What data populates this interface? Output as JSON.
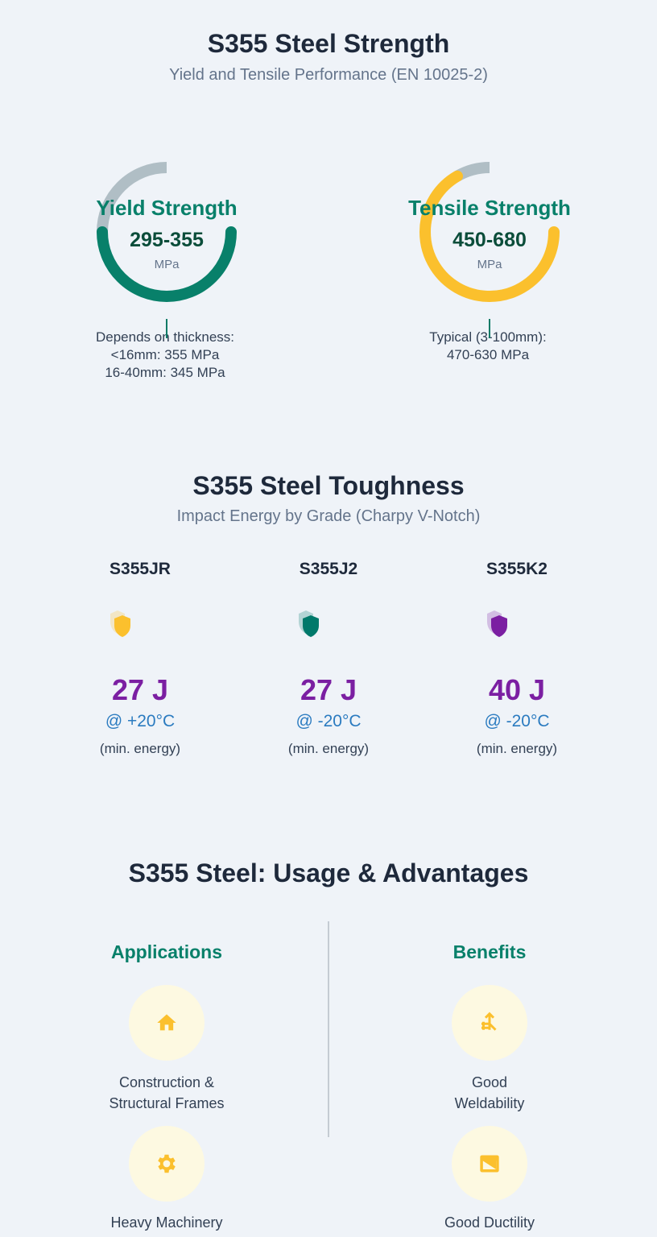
{
  "strength": {
    "title": "S355 Steel Strength",
    "subtitle": "Yield and Tensile Performance (EN 10025-2)",
    "gauges": [
      {
        "label": "Yield Strength",
        "value": "295-355",
        "unit": "MPa",
        "fill_fraction": 0.75,
        "color": "#08806a",
        "track_color": "#b0bec5",
        "notes": [
          "Depends on thickness:",
          "<16mm: 355 MPa",
          "16-40mm: 345 MPa"
        ]
      },
      {
        "label": "Tensile Strength",
        "value": "450-680",
        "unit": "MPa",
        "fill_fraction": 0.92,
        "color": "#fbc02d",
        "track_color": "#b0bec5",
        "notes": [
          "Typical (3-100mm):",
          "470-630 MPa"
        ]
      }
    ]
  },
  "toughness": {
    "title": "S355 Steel Toughness",
    "subtitle": "Impact Energy by Grade (Charpy V-Notch)",
    "grades": [
      {
        "name": "S355JR",
        "icon": "shield-icon",
        "color": "#fbc02d",
        "energy": "27 J",
        "temp": "@ +20°C",
        "note": "(min. energy)"
      },
      {
        "name": "S355J2",
        "icon": "shield-icon",
        "color": "#00796b",
        "energy": "27 J",
        "temp": "@ -20°C",
        "note": "(min. energy)"
      },
      {
        "name": "S355K2",
        "icon": "shield-icon",
        "color": "#7b1fa2",
        "energy": "40 J",
        "temp": "@ -20°C",
        "note": "(min. energy)"
      }
    ]
  },
  "usage": {
    "title": "S355 Steel: Usage & Advantages",
    "applications": {
      "heading": "Applications",
      "items": [
        {
          "icon": "home-icon",
          "lines": [
            "Construction &",
            "Structural Frames"
          ]
        },
        {
          "icon": "gear-icon",
          "lines": [
            "Heavy Machinery"
          ]
        }
      ]
    },
    "benefits": {
      "heading": "Benefits",
      "items": [
        {
          "icon": "merge-arrows-icon",
          "lines": [
            "Good",
            "Weldability"
          ]
        },
        {
          "icon": "panel-icon",
          "lines": [
            "Good Ductility"
          ]
        }
      ]
    },
    "accent": "#fbc02d"
  }
}
